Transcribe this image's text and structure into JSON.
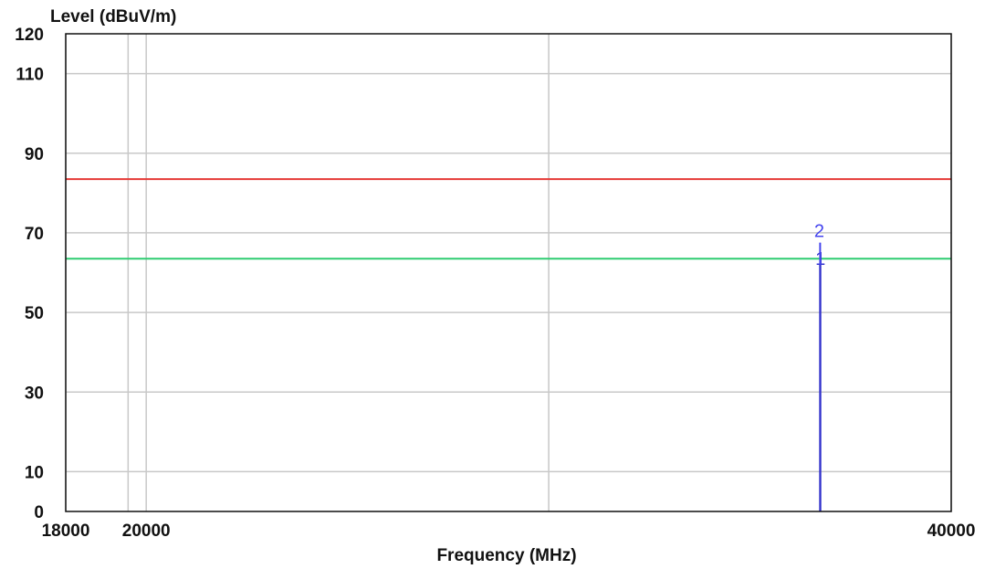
{
  "chart_data": {
    "type": "line",
    "ylabel": "Level (dBuV/m)",
    "xlabel": "Frequency (MHz)",
    "xlim": [
      18000,
      40000
    ],
    "ylim": [
      0,
      120
    ],
    "x_ticks": [
      {
        "value": 18000,
        "label": "18000"
      },
      {
        "value": 20000,
        "label": "20000"
      },
      {
        "value": 40000,
        "label": "40000"
      }
    ],
    "y_ticks": [
      {
        "value": 0,
        "label": "0"
      },
      {
        "value": 10,
        "label": "10"
      },
      {
        "value": 30,
        "label": "30"
      },
      {
        "value": 50,
        "label": "50"
      },
      {
        "value": 70,
        "label": "70"
      },
      {
        "value": 90,
        "label": "90"
      },
      {
        "value": 110,
        "label": "110"
      },
      {
        "value": 120,
        "label": "120"
      }
    ],
    "x_gridlines": [
      18000,
      19550,
      20000,
      30000,
      40000
    ],
    "y_gridlines": [
      10,
      30,
      50,
      70,
      90,
      110
    ],
    "grid": true,
    "series": [
      {
        "key": "limit-red",
        "color": "#e53935",
        "points": [
          [
            18000,
            83.5
          ],
          [
            40000,
            83.5
          ]
        ]
      },
      {
        "key": "limit-green",
        "color": "#2ecc71",
        "points": [
          [
            18000,
            63.5
          ],
          [
            40000,
            63.5
          ]
        ]
      }
    ],
    "spectrum": {
      "color": "#3333cc",
      "points": [
        [
          36740,
          0
        ],
        [
          36740,
          62
        ],
        [
          36750,
          62
        ],
        [
          36750,
          0
        ]
      ]
    },
    "markers": [
      {
        "label": "2",
        "x": 36720,
        "y": 68,
        "color": "#4444ee"
      },
      {
        "label": "1",
        "x": 36750,
        "y": 61,
        "color": "#3333cc"
      }
    ]
  }
}
